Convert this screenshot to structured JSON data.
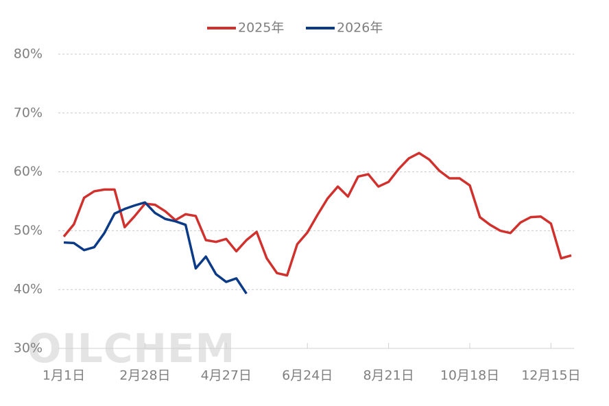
{
  "chart_data": {
    "type": "line",
    "watermark": "OILCHEM",
    "categories": [
      "1月1日",
      null,
      null,
      null,
      null,
      null,
      null,
      null,
      "2月28日",
      null,
      null,
      null,
      null,
      null,
      null,
      null,
      "4月27日",
      null,
      null,
      null,
      null,
      null,
      null,
      null,
      "6月24日",
      null,
      null,
      null,
      null,
      null,
      null,
      null,
      "8月21日",
      null,
      null,
      null,
      null,
      null,
      null,
      null,
      "10月18日",
      null,
      null,
      null,
      null,
      null,
      null,
      null,
      "12月15日",
      null,
      null
    ],
    "series": [
      {
        "name": "2025年",
        "color": "#d0312d",
        "values": [
          49.0,
          51.1,
          55.6,
          56.7,
          57.0,
          57.0,
          50.6,
          52.5,
          54.6,
          54.4,
          53.3,
          51.8,
          52.8,
          52.5,
          48.4,
          48.1,
          48.6,
          46.5,
          48.4,
          49.8,
          45.3,
          42.8,
          42.4,
          47.7,
          49.7,
          52.7,
          55.5,
          57.5,
          55.8,
          59.2,
          59.6,
          57.5,
          58.3,
          60.5,
          62.3,
          63.2,
          62.1,
          60.2,
          58.9,
          58.9,
          57.7,
          52.3,
          51.0,
          50.0,
          49.6,
          51.4,
          52.3,
          52.4,
          51.2,
          45.3,
          45.8
        ]
      },
      {
        "name": "2026年",
        "color": "#0b3a86",
        "values": [
          48.0,
          47.9,
          46.7,
          47.2,
          49.6,
          52.9,
          53.7,
          54.3,
          54.8,
          53.0,
          52.0,
          51.6,
          51.0,
          43.6,
          45.6,
          42.6,
          41.3,
          41.9,
          39.3,
          null,
          null,
          null,
          null,
          null,
          null,
          null,
          null,
          null,
          null,
          null,
          null,
          null,
          null,
          null,
          null,
          null,
          null,
          null,
          null,
          null,
          null,
          null,
          null,
          null,
          null,
          null,
          null,
          null,
          null,
          null,
          null
        ]
      }
    ],
    "ylim": [
      30,
      80
    ],
    "yticks": [
      {
        "value": 30,
        "label": "30%"
      },
      {
        "value": 40,
        "label": "40%"
      },
      {
        "value": 50,
        "label": "50%"
      },
      {
        "value": 60,
        "label": "60%"
      },
      {
        "value": 70,
        "label": "70%"
      },
      {
        "value": 80,
        "label": "80%"
      }
    ],
    "grid": true
  }
}
